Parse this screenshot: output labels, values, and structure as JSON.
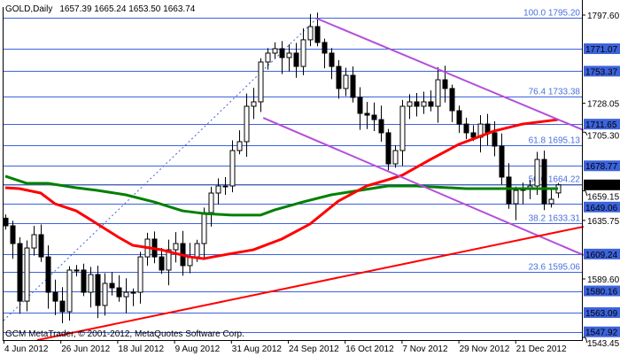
{
  "header": {
    "symbol_timeframe": "GOLD,Daily",
    "ohlc": "1657.39 1665.24 1653.50 1663.74"
  },
  "watermark": "GCM MetaTrader, © 2001-2012, MetaQuotes Software Corp.",
  "colors": {
    "level_line": "#3d63dc",
    "level_label_bg": "#3d63dc",
    "fib_text": "#4a6fe0",
    "ma_fast": "#ff0000",
    "ma_slow": "#008000",
    "channel": "#b44fd8",
    "trendline": "#ff0000",
    "bull_body": "#ffffff",
    "bear_body": "#000000",
    "current_price_bg": "#000000"
  },
  "chart_data": {
    "type": "candlestick",
    "title": "GOLD,Daily",
    "x_tick_labels": [
      "4 Jun 2012",
      "26 Jun 2012",
      "18 Jul 2012",
      "9 Aug 2012",
      "31 Aug 2012",
      "24 Sep 2012",
      "16 Oct 2012",
      "7 Nov 2012",
      "29 Nov 2012",
      "21 Dec 2012"
    ],
    "y_tick_labels": [
      "1797.60",
      "1728.05",
      "1705.30",
      "1659.15",
      "1635.75",
      "1589.60",
      "1543.45"
    ],
    "ylim": [
      1543.45,
      1797.6
    ],
    "grid": false,
    "closes": [
      1631.5,
      1617.5,
      1572.1,
      1614.0,
      1624.5,
      1607.0,
      1579.1,
      1572.1,
      1563.8,
      1596.6,
      1596.6,
      1579.1,
      1593.1,
      1568.7,
      1586.1,
      1582.6,
      1575.6,
      1579.1,
      1579.1,
      1607.0,
      1621.0,
      1607.0,
      1596.6,
      1612.6,
      1617.5,
      1600.1,
      1607.0,
      1617.5,
      1641.9,
      1657.3,
      1662.9,
      1662.9,
      1690.8,
      1697.8,
      1725.7,
      1729.2,
      1760.6,
      1767.6,
      1771.1,
      1764.1,
      1767.6,
      1757.1,
      1778.1,
      1788.5,
      1776.0,
      1767.6,
      1757.1,
      1739.7,
      1750.1,
      1732.7,
      1720.1,
      1718.7,
      1715.2,
      1704.8,
      1680.3,
      1690.8,
      1725.7,
      1729.2,
      1725.7,
      1729.2,
      1725.7,
      1746.6,
      1739.7,
      1722.2,
      1711.7,
      1704.8,
      1701.3,
      1711.7,
      1704.8,
      1694.3,
      1669.9,
      1648.9,
      1659.4,
      1661.5,
      1662.9,
      1683.8,
      1648.9,
      1652.4,
      1663.74
    ],
    "last_bar": {
      "open": 1657.39,
      "high": 1665.24,
      "low": 1653.5,
      "close": 1663.74
    },
    "moving_average_fast": [
      [
        0,
        1661.5
      ],
      [
        2,
        1660.8
      ],
      [
        5,
        1657.3
      ],
      [
        7,
        1648.9
      ],
      [
        10,
        1643.3
      ],
      [
        12,
        1636.4
      ],
      [
        16,
        1622.4
      ],
      [
        18,
        1616.1
      ],
      [
        22,
        1612.6
      ],
      [
        26,
        1607.0
      ],
      [
        28,
        1605.6
      ],
      [
        30,
        1607.7
      ],
      [
        35,
        1612.6
      ],
      [
        39,
        1621.0
      ],
      [
        43,
        1632.9
      ],
      [
        47,
        1651.0
      ],
      [
        51,
        1662.9
      ],
      [
        54,
        1667.8
      ],
      [
        56,
        1671.3
      ],
      [
        60,
        1683.8
      ],
      [
        64,
        1695.7
      ],
      [
        69,
        1706.2
      ],
      [
        73,
        1711.7
      ],
      [
        78,
        1715.2
      ]
    ],
    "moving_average_slow": [
      [
        0,
        1670.6
      ],
      [
        3,
        1665.0
      ],
      [
        6,
        1665.0
      ],
      [
        10,
        1661.5
      ],
      [
        13,
        1659.4
      ],
      [
        17,
        1655.9
      ],
      [
        21,
        1650.3
      ],
      [
        25,
        1643.3
      ],
      [
        28,
        1641.2
      ],
      [
        32,
        1639.9
      ],
      [
        36,
        1639.9
      ],
      [
        38,
        1644.0
      ],
      [
        42,
        1650.3
      ],
      [
        46,
        1655.9
      ],
      [
        50,
        1659.4
      ],
      [
        54,
        1662.9
      ],
      [
        58,
        1662.9
      ],
      [
        65,
        1660.8
      ],
      [
        78,
        1660.8
      ]
    ],
    "fibonacci": {
      "dotted_line": [
        [
          0,
          1556.8
        ],
        [
          44,
          1795.2
        ]
      ],
      "levels": [
        {
          "label": "100.0 1795.20",
          "price": 1795.2
        },
        {
          "label": "76.4 1733.38",
          "price": 1733.38
        },
        {
          "label": "61.8 1695.13",
          "price": 1695.13
        },
        {
          "label": "50.0 1664.22",
          "price": 1664.22
        },
        {
          "label": "38.2 1633.31",
          "price": 1633.31
        },
        {
          "label": "23.6 1595.06",
          "price": 1595.06
        }
      ]
    },
    "horizontal_levels": [
      {
        "label": "1771.07",
        "price": 1771.07
      },
      {
        "label": "1753.37",
        "price": 1753.37
      },
      {
        "label": "1711.65",
        "price": 1711.65
      },
      {
        "label": "1678.77",
        "price": 1678.77
      },
      {
        "label": "1649.06",
        "price": 1649.06
      },
      {
        "label": "1609.24",
        "price": 1609.24
      },
      {
        "label": "1580.16",
        "price": 1580.16
      },
      {
        "label": "1563.09",
        "price": 1563.09
      },
      {
        "label": "1547.92",
        "price": 1547.92
      }
    ],
    "current_price": {
      "label": "1663.74",
      "price": 1663.74
    },
    "channel_upper": [
      [
        44,
        1794.8
      ],
      [
        81.6,
        1706.9
      ]
    ],
    "channel_lower": [
      [
        36.4,
        1716.6
      ],
      [
        81.6,
        1608.4
      ]
    ],
    "support_trendline": [
      [
        4.5,
        1541.4
      ],
      [
        81.6,
        1630.8
      ]
    ]
  }
}
